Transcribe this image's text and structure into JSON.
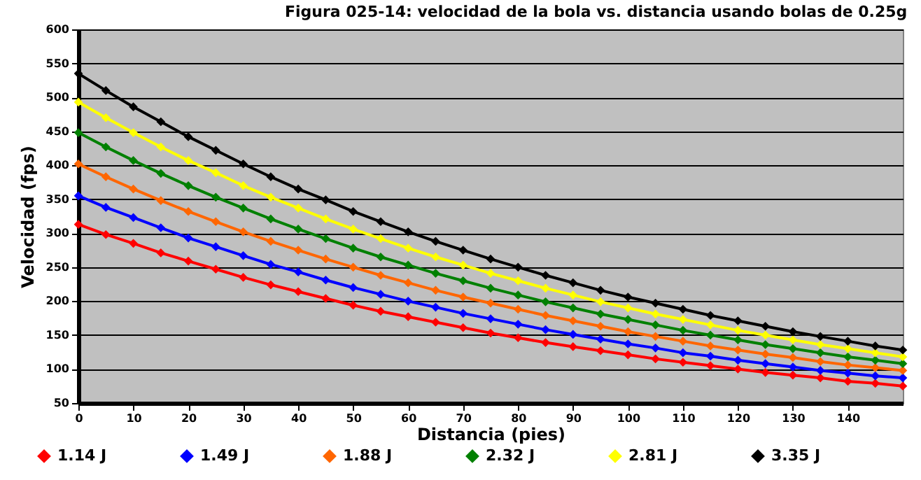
{
  "chart_data": {
    "type": "line",
    "title": "Figura 025-14: velocidad de la bola vs. distancia usando bolas de 0.25g",
    "xlabel": "Distancia (pies)",
    "ylabel": "Velocidad (fps)",
    "x": [
      0,
      5,
      10,
      15,
      20,
      25,
      30,
      35,
      40,
      45,
      50,
      55,
      60,
      65,
      70,
      75,
      80,
      85,
      90,
      95,
      100,
      105,
      110,
      115,
      120,
      125,
      130,
      135,
      140,
      145,
      150
    ],
    "series": [
      {
        "name": "1.14 J",
        "color": "#ff0000",
        "values": [
          313,
          298,
          285,
          271,
          259,
          247,
          235,
          224,
          214,
          204,
          194,
          185,
          177,
          169,
          161,
          153,
          146,
          139,
          133,
          127,
          121,
          115,
          110,
          105,
          100,
          95,
          91,
          87,
          82,
          79,
          75
        ]
      },
      {
        "name": "1.49 J",
        "color": "#0000ff",
        "values": [
          355,
          338,
          323,
          308,
          293,
          280,
          267,
          254,
          243,
          231,
          220,
          210,
          200,
          191,
          182,
          174,
          166,
          158,
          151,
          144,
          137,
          131,
          124,
          119,
          113,
          108,
          103,
          98,
          94,
          90,
          87
        ]
      },
      {
        "name": "1.88 J",
        "color": "#ff6600",
        "values": [
          402,
          383,
          365,
          348,
          332,
          317,
          302,
          288,
          275,
          262,
          250,
          238,
          227,
          216,
          206,
          197,
          188,
          179,
          171,
          163,
          155,
          148,
          141,
          134,
          128,
          122,
          117,
          111,
          106,
          102,
          98
        ]
      },
      {
        "name": "2.32 J",
        "color": "#008000",
        "values": [
          448,
          427,
          407,
          388,
          370,
          353,
          337,
          321,
          306,
          292,
          278,
          265,
          253,
          241,
          230,
          219,
          209,
          199,
          190,
          181,
          173,
          165,
          157,
          150,
          143,
          136,
          130,
          124,
          118,
          113,
          108
        ]
      },
      {
        "name": "2.81 J",
        "color": "#ffff00",
        "values": [
          493,
          470,
          448,
          427,
          407,
          389,
          370,
          353,
          337,
          321,
          306,
          292,
          278,
          265,
          253,
          241,
          230,
          219,
          209,
          199,
          190,
          181,
          173,
          165,
          157,
          150,
          143,
          136,
          130,
          124,
          118
        ]
      },
      {
        "name": "3.35 J",
        "color": "#000000",
        "values": [
          535,
          510,
          486,
          464,
          442,
          422,
          402,
          383,
          365,
          349,
          332,
          317,
          302,
          288,
          275,
          262,
          250,
          238,
          227,
          216,
          206,
          197,
          188,
          179,
          171,
          163,
          155,
          148,
          141,
          134,
          128
        ]
      }
    ],
    "xlim": [
      0,
      150
    ],
    "xticks": [
      0,
      10,
      20,
      30,
      40,
      50,
      60,
      70,
      80,
      90,
      100,
      110,
      120,
      130,
      140
    ],
    "ylim": [
      50,
      600
    ],
    "yticks": [
      50,
      100,
      150,
      200,
      250,
      300,
      350,
      400,
      450,
      500,
      550,
      600
    ],
    "grid": "y",
    "legend": "bottom",
    "marker": "diamond",
    "line_style": "solid"
  }
}
